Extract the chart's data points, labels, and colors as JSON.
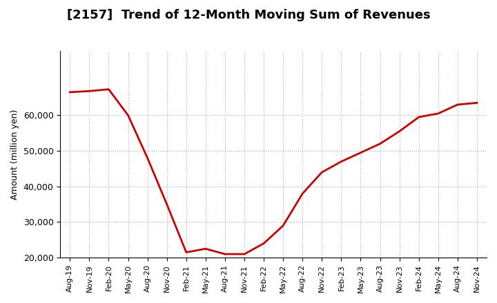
{
  "title": "[2157]  Trend of 12-Month Moving Sum of Revenues",
  "ylabel": "Amount (million yen)",
  "line_color": "#cc0000",
  "background_color": "#ffffff",
  "plot_bg_color": "#ffffff",
  "grid_color": "#aaaaaa",
  "ylim": [
    20000,
    70000
  ],
  "yticks": [
    20000,
    30000,
    40000,
    50000,
    60000
  ],
  "x_labels": [
    "Aug-19",
    "Nov-19",
    "Feb-20",
    "May-20",
    "Aug-20",
    "Nov-20",
    "Feb-21",
    "May-21",
    "Aug-21",
    "Nov-21",
    "Feb-22",
    "May-22",
    "Aug-22",
    "Nov-22",
    "Feb-23",
    "May-23",
    "Aug-23",
    "Nov-23",
    "Feb-24",
    "May-24",
    "Aug-24",
    "Nov-24"
  ],
  "y_values": [
    66500,
    66800,
    67300,
    60000,
    48000,
    35000,
    21500,
    22500,
    21000,
    21000,
    24000,
    29000,
    38000,
    44000,
    47000,
    49500,
    52000,
    55500,
    59500,
    60500,
    63000,
    63500
  ]
}
